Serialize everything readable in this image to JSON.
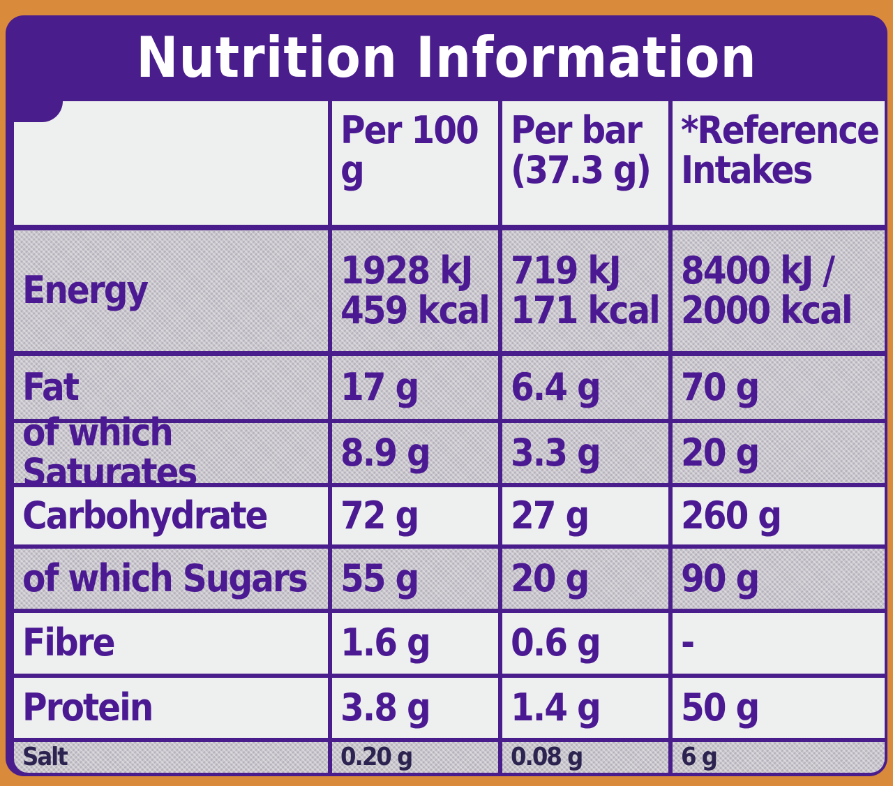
{
  "title": "Nutrition Information",
  "columns": [
    "",
    "Per 100 g",
    "Per bar (37.3 g)",
    "*Reference Intakes"
  ],
  "rows": [
    {
      "nutrient": "Energy",
      "per100": "1928 kJ 459 kcal",
      "perbar": "719 kJ 171 kcal",
      "ri": "8400 kJ / 2000 kcal"
    },
    {
      "nutrient": "Fat",
      "per100": "17 g",
      "perbar": "6.4 g",
      "ri": "70 g"
    },
    {
      "nutrient": "of which Saturates",
      "per100": "8.9 g",
      "perbar": "3.3 g",
      "ri": "20 g"
    },
    {
      "nutrient": "Carbohydrate",
      "per100": "72 g",
      "perbar": "27 g",
      "ri": "260 g"
    },
    {
      "nutrient": "of which Sugars",
      "per100": "55 g",
      "perbar": "20 g",
      "ri": "90 g"
    },
    {
      "nutrient": "Fibre",
      "per100": "1.6 g",
      "perbar": "0.6 g",
      "ri": "-"
    },
    {
      "nutrient": "Protein",
      "per100": "3.8 g",
      "perbar": "1.4 g",
      "ri": "50 g"
    },
    {
      "nutrient": "Salt",
      "per100": "0.20 g",
      "perbar": "0.08 g",
      "ri": "6 g"
    }
  ],
  "colors": {
    "purple": "#4a1d8c",
    "background": "#d98a3a"
  }
}
